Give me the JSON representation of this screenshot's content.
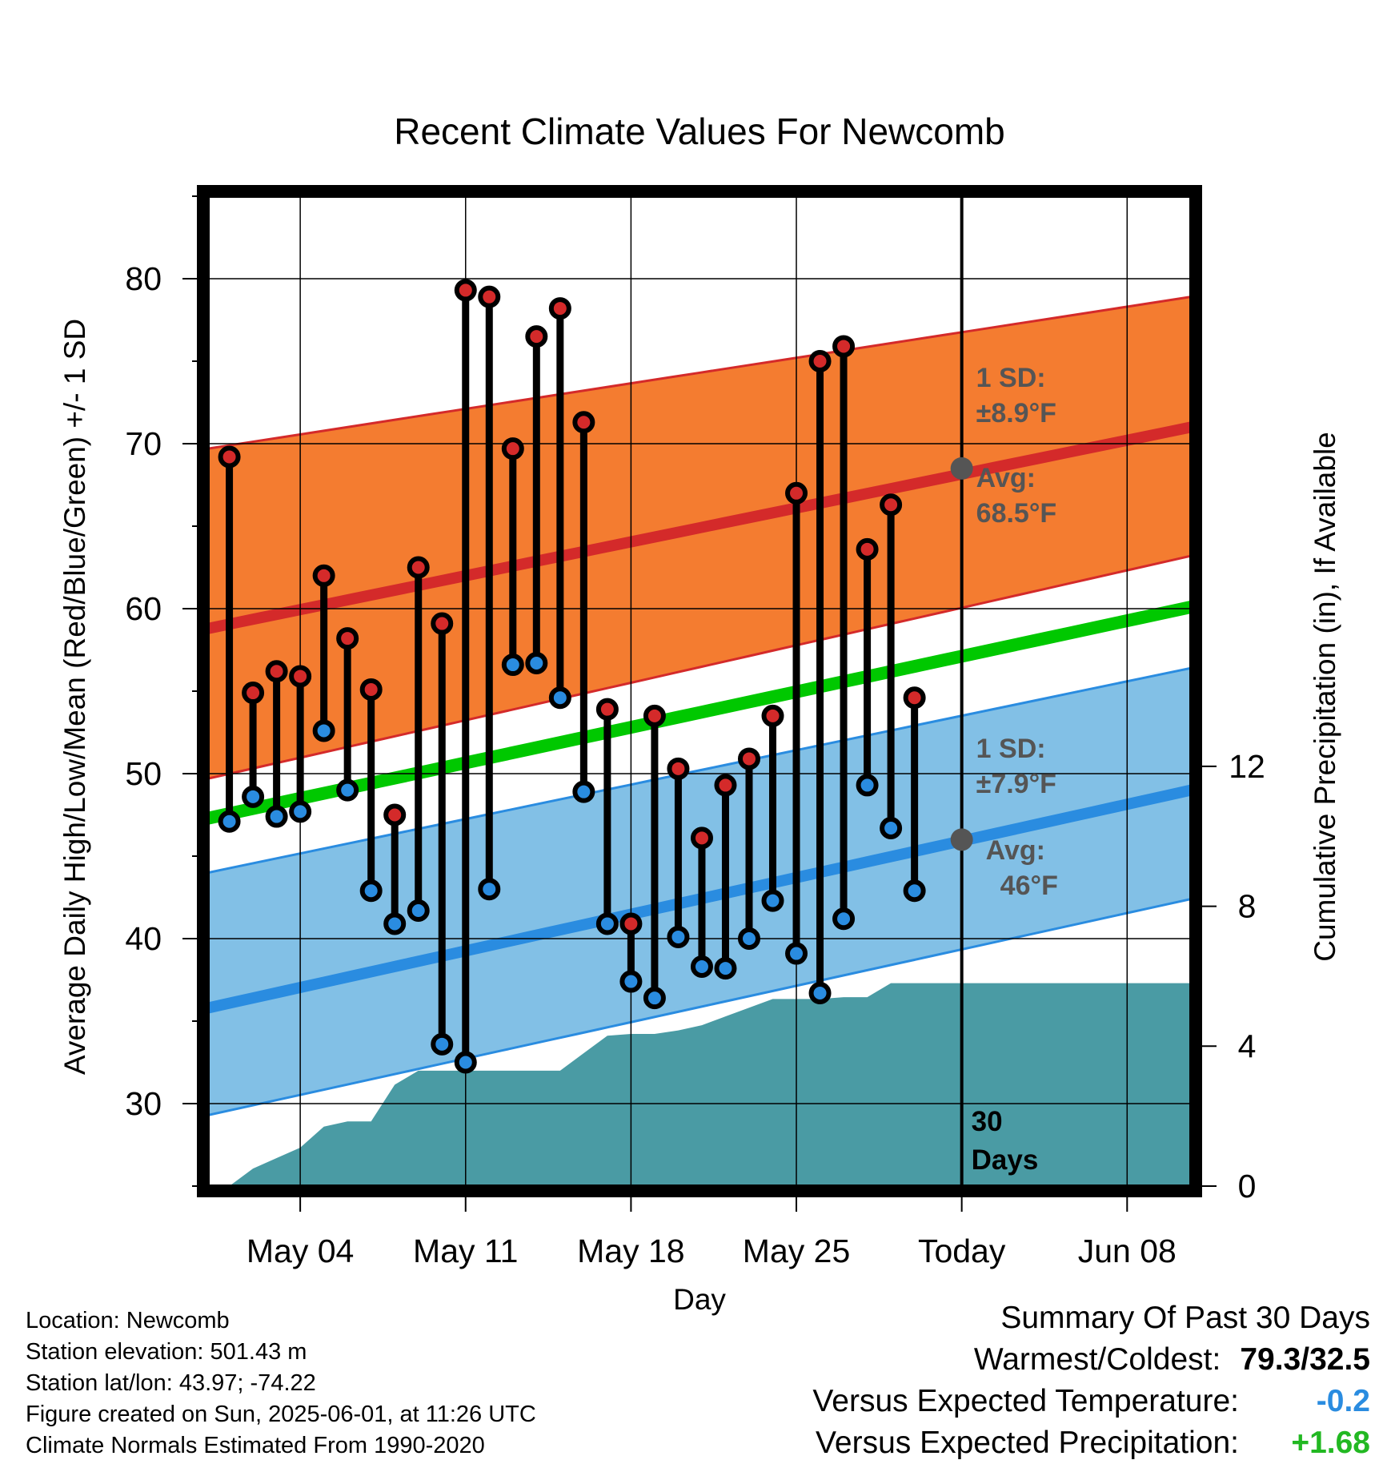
{
  "chart_data": {
    "type": "line",
    "title": "Recent Climate Values For Newcomb",
    "xlabel": "Day",
    "ylabel_left": "Average Daily High/Low/Mean (Red/Blue/Green) +/- 1 SD",
    "ylabel_right": "Cumulative Precipitation (in), If Available",
    "ylim_left": [
      25,
      85
    ],
    "yticks_left": [
      30,
      40,
      50,
      60,
      70,
      80
    ],
    "ylim_right": [
      0,
      28.3
    ],
    "yticks_right": [
      0,
      4,
      8,
      12
    ],
    "xlim_day": [
      0.1,
      41.7
    ],
    "xticks": [
      {
        "day": 4,
        "label": "May 04"
      },
      {
        "day": 11,
        "label": "May 11"
      },
      {
        "day": 18,
        "label": "May 18"
      },
      {
        "day": 25,
        "label": "May 25"
      },
      {
        "day": 32,
        "label": "Today"
      },
      {
        "day": 39,
        "label": "Jun 08"
      }
    ],
    "today_day": 32,
    "today_label": "30 Days",
    "normals": {
      "high_mean": {
        "start": 58.8,
        "end": 71.0
      },
      "high_upper": {
        "start": 69.7,
        "end": 78.9
      },
      "high_lower": {
        "start": 49.7,
        "end": 63.2
      },
      "low_mean": {
        "start": 35.8,
        "end": 49.0
      },
      "low_upper": {
        "start": 44.0,
        "end": 56.4
      },
      "low_lower": {
        "start": 29.3,
        "end": 42.4
      },
      "mean_mean": {
        "start": 47.3,
        "end": 60.1
      }
    },
    "series": [
      {
        "name": "High",
        "color": "#d42a2a",
        "days": [
          1,
          2,
          3,
          4,
          5,
          6,
          7,
          8,
          9,
          10,
          11,
          12,
          13,
          14,
          15,
          16,
          17,
          18,
          19,
          20,
          21,
          22,
          23,
          24,
          25,
          26,
          27,
          28,
          29,
          30,
          31
        ],
        "values": [
          69.2,
          54.9,
          56.2,
          55.9,
          62.0,
          58.2,
          55.1,
          47.5,
          62.5,
          59.1,
          79.3,
          78.9,
          69.7,
          76.5,
          78.2,
          71.3,
          53.9,
          40.9,
          53.5,
          50.3,
          46.1,
          49.3,
          50.9,
          53.5,
          67.0,
          75.0,
          75.9,
          63.6,
          66.3,
          54.6,
          null
        ]
      },
      {
        "name": "Low",
        "color": "#2a8ce0",
        "days": [
          1,
          2,
          3,
          4,
          5,
          6,
          7,
          8,
          9,
          10,
          11,
          12,
          13,
          14,
          15,
          16,
          17,
          18,
          19,
          20,
          21,
          22,
          23,
          24,
          25,
          26,
          27,
          28,
          29,
          30,
          31
        ],
        "values": [
          47.1,
          48.6,
          47.4,
          47.7,
          52.6,
          49.0,
          42.9,
          40.9,
          41.7,
          33.6,
          32.5,
          43.0,
          56.6,
          56.7,
          54.6,
          48.9,
          40.9,
          37.4,
          36.4,
          40.1,
          38.3,
          38.2,
          40.0,
          42.3,
          39.1,
          36.7,
          41.2,
          49.3,
          46.7,
          42.9,
          null
        ]
      },
      {
        "name": "Cumulative Precipitation",
        "color": "#4a9ba4",
        "days": [
          1,
          2,
          3,
          4,
          5,
          6,
          7,
          8,
          9,
          10,
          11,
          12,
          13,
          14,
          15,
          16,
          17,
          18,
          19,
          20,
          21,
          22,
          23,
          24,
          25,
          26,
          27,
          28,
          29,
          30,
          31,
          32,
          41.7
        ],
        "values": [
          0.0,
          0.5,
          0.8,
          1.1,
          1.7,
          1.85,
          1.85,
          2.9,
          3.3,
          3.3,
          3.3,
          3.3,
          3.3,
          3.3,
          3.3,
          3.8,
          4.3,
          4.35,
          4.35,
          4.45,
          4.6,
          4.85,
          5.1,
          5.35,
          5.35,
          5.35,
          5.4,
          5.4,
          5.8,
          5.8,
          5.8,
          5.8,
          5.8
        ]
      }
    ],
    "annotations": {
      "high_sd_line1": "1 SD:",
      "high_sd_line2": "±8.9°F",
      "high_avg_line1": "Avg:",
      "high_avg_line2": "68.5°F",
      "low_sd_line1": "1 SD:",
      "low_sd_line2": "±7.9°F",
      "low_avg_line1": "Avg:",
      "low_avg_line2": "46°F",
      "days_line1": "30",
      "days_line2": "Days"
    },
    "today_points": {
      "high_avg": 68.5,
      "low_avg": 46
    },
    "colors": {
      "high_band": "#f47c30",
      "high_line": "#d42a2a",
      "low_band": "#82c0e6",
      "low_line": "#2a8ce0",
      "mean_line": "#00c800",
      "precip": "#4a9ba4",
      "annotation": "#555555"
    },
    "grid": true
  },
  "footer": {
    "location": "Location: Newcomb",
    "elevation": "Station elevation: 501.43 m",
    "latlon": "Station lat/lon: 43.97; -74.22",
    "created": "Figure created on Sun, 2025-06-01, at 11:26 UTC",
    "normals": "Climate Normals Estimated From 1990-2020"
  },
  "summary": {
    "title": "Summary Of Past 30 Days",
    "warm_cold_label": "Warmest/Coldest:",
    "warm_cold_value": "79.3/32.5",
    "temp_label": "Versus Expected Temperature:",
    "temp_value": "-0.2",
    "temp_color": "#2a8ce0",
    "precip_label": "Versus Expected Precipitation:",
    "precip_value": "+1.68",
    "precip_color": "#22b822"
  }
}
